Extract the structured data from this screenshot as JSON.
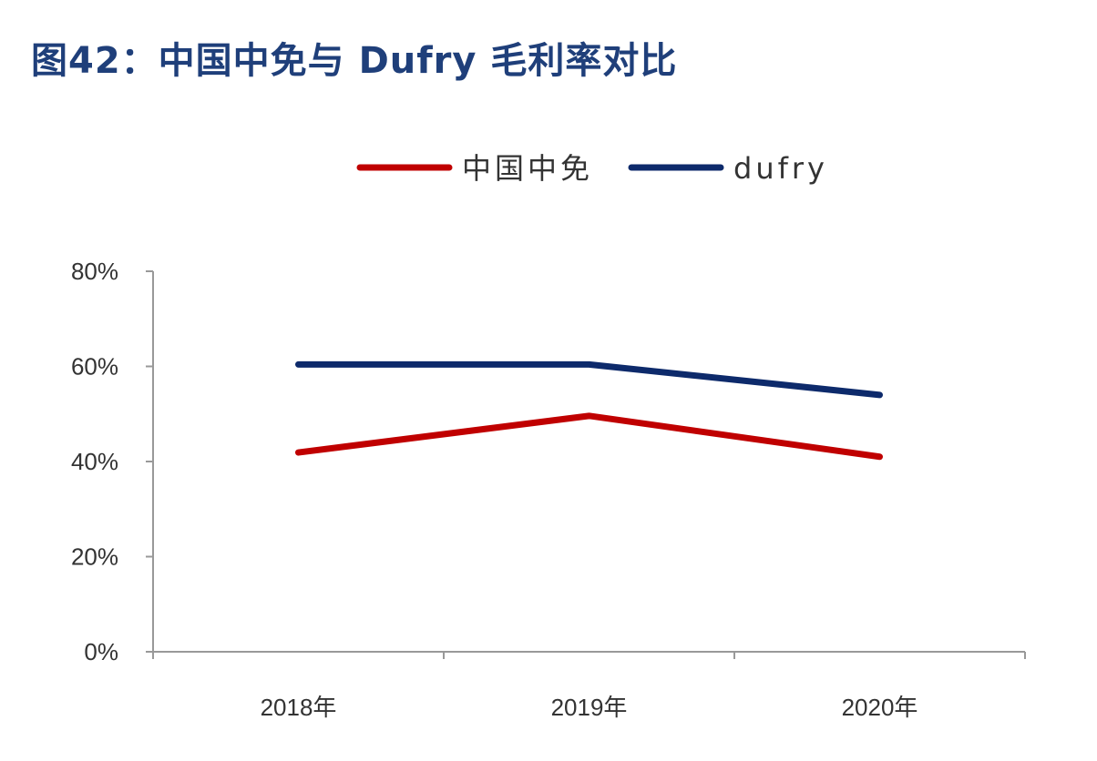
{
  "chart_data": {
    "type": "line",
    "title": "图42：中国中免与 Dufry 毛利率对比",
    "categories": [
      "2018年",
      "2019年",
      "2020年"
    ],
    "series": [
      {
        "name": "中国中免",
        "color": "#c00000",
        "values": [
          41.9,
          49.6,
          41.0
        ]
      },
      {
        "name": "dufry",
        "color": "#0d2a6b",
        "values": [
          60.4,
          60.4,
          54.0
        ]
      }
    ],
    "yticks": [
      "0%",
      "20%",
      "40%",
      "60%",
      "80%"
    ],
    "ylim": [
      0,
      80
    ],
    "grid": false,
    "legend": "top-center"
  }
}
